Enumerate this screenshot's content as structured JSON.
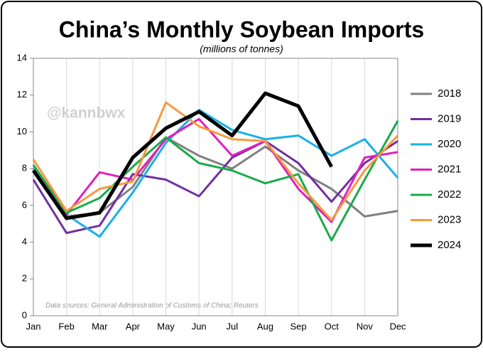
{
  "chart_data": {
    "type": "line",
    "title": "China’s Monthly Soybean Imports",
    "subtitle": "(millions of tonnes)",
    "watermark": "@kannbwx",
    "source_note": "Data sources: General Administration of Customs of China; Reuters",
    "categories": [
      "Jan",
      "Feb",
      "Mar",
      "Apr",
      "May",
      "Jun",
      "Jul",
      "Aug",
      "Sep",
      "Oct",
      "Nov",
      "Dec"
    ],
    "ylim": [
      0,
      14
    ],
    "yticks": [
      0,
      2,
      4,
      6,
      8,
      10,
      12,
      14
    ],
    "grid": true,
    "legend": "right",
    "series": [
      {
        "name": "2018",
        "color": "#808080",
        "values": [
          8.0,
          5.4,
          5.6,
          7.0,
          9.7,
          8.7,
          8.0,
          9.2,
          7.9,
          6.9,
          5.4,
          5.7
        ]
      },
      {
        "name": "2019",
        "color": "#7030a0",
        "values": [
          7.4,
          4.5,
          4.9,
          7.7,
          7.4,
          6.5,
          8.6,
          9.5,
          8.3,
          6.2,
          8.3,
          9.5
        ]
      },
      {
        "name": "2020",
        "color": "#1ab0e8",
        "values": [
          8.0,
          5.5,
          4.3,
          6.7,
          9.4,
          11.2,
          10.1,
          9.6,
          9.8,
          8.7,
          9.6,
          7.5
        ]
      },
      {
        "name": "2021",
        "color": "#e020c0",
        "values": [
          8.2,
          5.5,
          7.8,
          7.4,
          9.6,
          10.7,
          8.7,
          9.5,
          6.9,
          5.1,
          8.6,
          8.9
        ]
      },
      {
        "name": "2022",
        "color": "#1aaa4a",
        "values": [
          8.2,
          5.6,
          6.4,
          8.1,
          9.7,
          8.3,
          7.9,
          7.2,
          7.7,
          4.1,
          7.4,
          10.6
        ]
      },
      {
        "name": "2023",
        "color": "#f79a3e",
        "values": [
          8.5,
          5.7,
          6.9,
          7.3,
          11.6,
          10.3,
          9.6,
          9.5,
          7.2,
          5.2,
          7.9,
          9.8
        ]
      },
      {
        "name": "2024",
        "color": "#000000",
        "values": [
          7.9,
          5.3,
          5.6,
          8.6,
          10.2,
          11.1,
          9.8,
          12.1,
          11.4,
          8.1,
          null,
          null
        ]
      }
    ]
  }
}
